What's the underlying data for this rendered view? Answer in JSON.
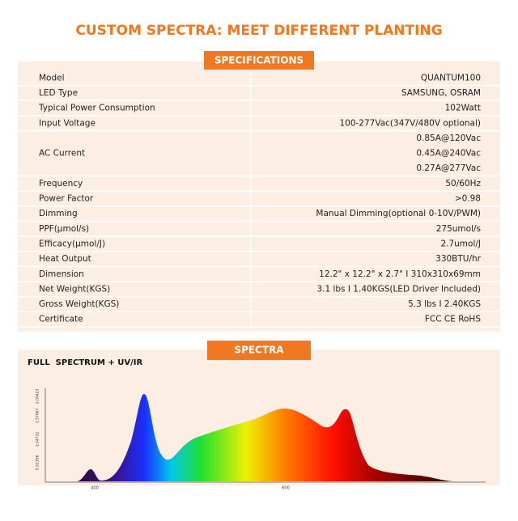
{
  "header": {
    "title": "CUSTOM SPECTRA: MEET DIFFERENT PLANTING"
  },
  "specifications": {
    "title": "SPECIFICATIONS",
    "rows": [
      {
        "label": "Model",
        "values": [
          "QUANTUM100"
        ]
      },
      {
        "label": "LED Type",
        "values": [
          "SAMSUNG, OSRAM"
        ]
      },
      {
        "label": "Typical Power Consumption",
        "values": [
          "102Watt"
        ]
      },
      {
        "label": "Input Voltage",
        "values": [
          "100-277Vac(347V/480V optional)"
        ]
      },
      {
        "label": "AC Current",
        "values": [
          "0.85A@120Vac",
          "0.45A@240Vac",
          "0.27A@277Vac"
        ]
      },
      {
        "label": "Frequency",
        "values": [
          "50/60Hz"
        ]
      },
      {
        "label": "Power Factor",
        "values": [
          ">0.98"
        ]
      },
      {
        "label": "Dimming",
        "values": [
          "Manual Dimming(optional 0-10V/PWM)"
        ]
      },
      {
        "label": "PPF(μmol/s)",
        "values": [
          "275umol/s"
        ]
      },
      {
        "label": "Efficacy(μmol/J)",
        "values": [
          "2.7umol/J"
        ]
      },
      {
        "label": "Heat Output",
        "values": [
          "330BTU/hr"
        ]
      },
      {
        "label": "Dimension",
        "values": [
          "12.2\" x 12.2\" x 2.7\" I 310x310x69mm"
        ]
      },
      {
        "label": "Net Weight(KGS)",
        "values": [
          "3.1 lbs I 1.40KGS(LED Driver Included)"
        ]
      },
      {
        "label": "Gross Weight(KGS)",
        "values": [
          "5.3 lbs I 2.40KGS"
        ]
      },
      {
        "label": "Certificate",
        "values": [
          "FCC CE RoHS"
        ]
      }
    ]
  },
  "spectra": {
    "title": "SPECTRA",
    "subtitle": "FULL  SPECTRUM + UV/IR",
    "x_tick_labels": [
      "400",
      "600"
    ],
    "y_tick_labels": [
      "0.52356",
      "1.04711",
      "1.57067",
      "2.09423"
    ]
  }
}
